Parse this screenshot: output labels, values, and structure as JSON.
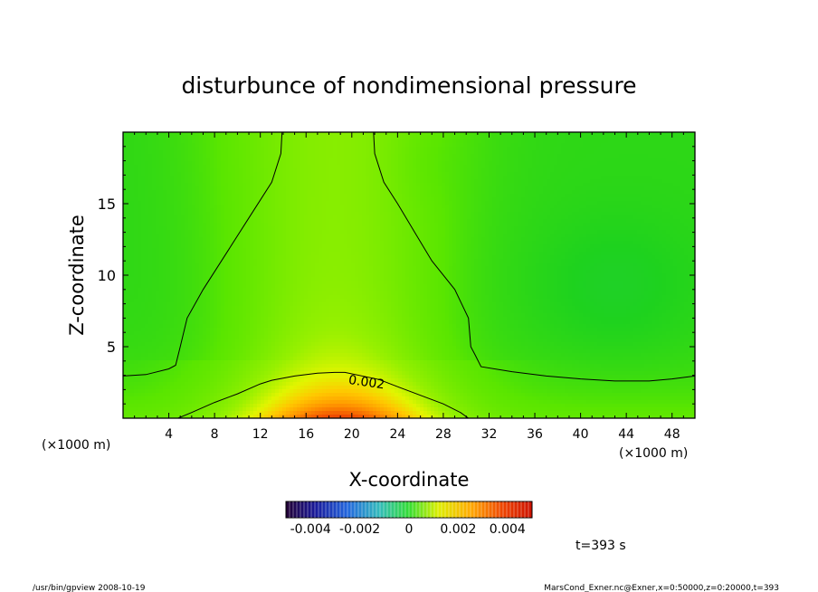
{
  "chart_data": {
    "type": "heatmap",
    "title": "disturbunce of nondimensional pressure",
    "xlabel": "X-coordinate",
    "ylabel": "Z-coordinate",
    "x_unit_left": "(×1000 m)",
    "x_unit_right": "(×1000 m)",
    "xlim": [
      0,
      50
    ],
    "ylim": [
      0,
      20
    ],
    "x_ticks": [
      4,
      8,
      12,
      16,
      20,
      24,
      28,
      32,
      36,
      40,
      44,
      48
    ],
    "y_ticks": [
      5,
      10,
      15
    ],
    "contour_label": "0.002",
    "contours": [
      {
        "level": 0.002,
        "points": [
          [
            4.8,
            0
          ],
          [
            6,
            0.4
          ],
          [
            8,
            1.1
          ],
          [
            10,
            1.7
          ],
          [
            12,
            2.4
          ],
          [
            13,
            2.65
          ],
          [
            15,
            2.95
          ],
          [
            17,
            3.15
          ],
          [
            18.5,
            3.2
          ],
          [
            19.4,
            3.2
          ],
          [
            22.4,
            2.7
          ],
          [
            24,
            2.2
          ],
          [
            26,
            1.6
          ],
          [
            28,
            1.0
          ],
          [
            29.5,
            0.4
          ],
          [
            30.2,
            0
          ]
        ]
      },
      {
        "level": 0,
        "points": [
          [
            0,
            2.95
          ],
          [
            2,
            3.05
          ],
          [
            4,
            3.45
          ],
          [
            4.6,
            3.7
          ],
          [
            5,
            5
          ],
          [
            5.6,
            7
          ],
          [
            7,
            9
          ],
          [
            9,
            11.5
          ],
          [
            11,
            14
          ],
          [
            13,
            16.5
          ],
          [
            13.8,
            18.5
          ],
          [
            13.9,
            20
          ]
        ]
      },
      {
        "level": 0,
        "points": [
          [
            21.9,
            20
          ],
          [
            22,
            18.5
          ],
          [
            22.8,
            16.5
          ],
          [
            24,
            15
          ],
          [
            25.5,
            13
          ],
          [
            27,
            11
          ],
          [
            29,
            9
          ],
          [
            30.2,
            7
          ],
          [
            30.4,
            5
          ],
          [
            30.8,
            4.4
          ],
          [
            31.3,
            3.6
          ],
          [
            34,
            3.25
          ],
          [
            37,
            2.95
          ],
          [
            40,
            2.75
          ],
          [
            43,
            2.6
          ],
          [
            46,
            2.6
          ],
          [
            48,
            2.75
          ],
          [
            50,
            2.95
          ]
        ]
      }
    ],
    "colorbar": {
      "tick_labels": [
        "-0.004",
        "-0.002",
        "0",
        "0.002",
        "0.004"
      ],
      "tick_values": [
        -0.004,
        -0.002,
        0,
        0.002,
        0.004
      ],
      "range": [
        -0.005,
        0.005
      ]
    },
    "time_label": "t=393 s"
  },
  "footer": {
    "left": "/usr/bin/gpview   2008-10-19",
    "right": "MarsCond_Exner.nc@Exner,x=0:50000,z=0:20000,t=393"
  }
}
